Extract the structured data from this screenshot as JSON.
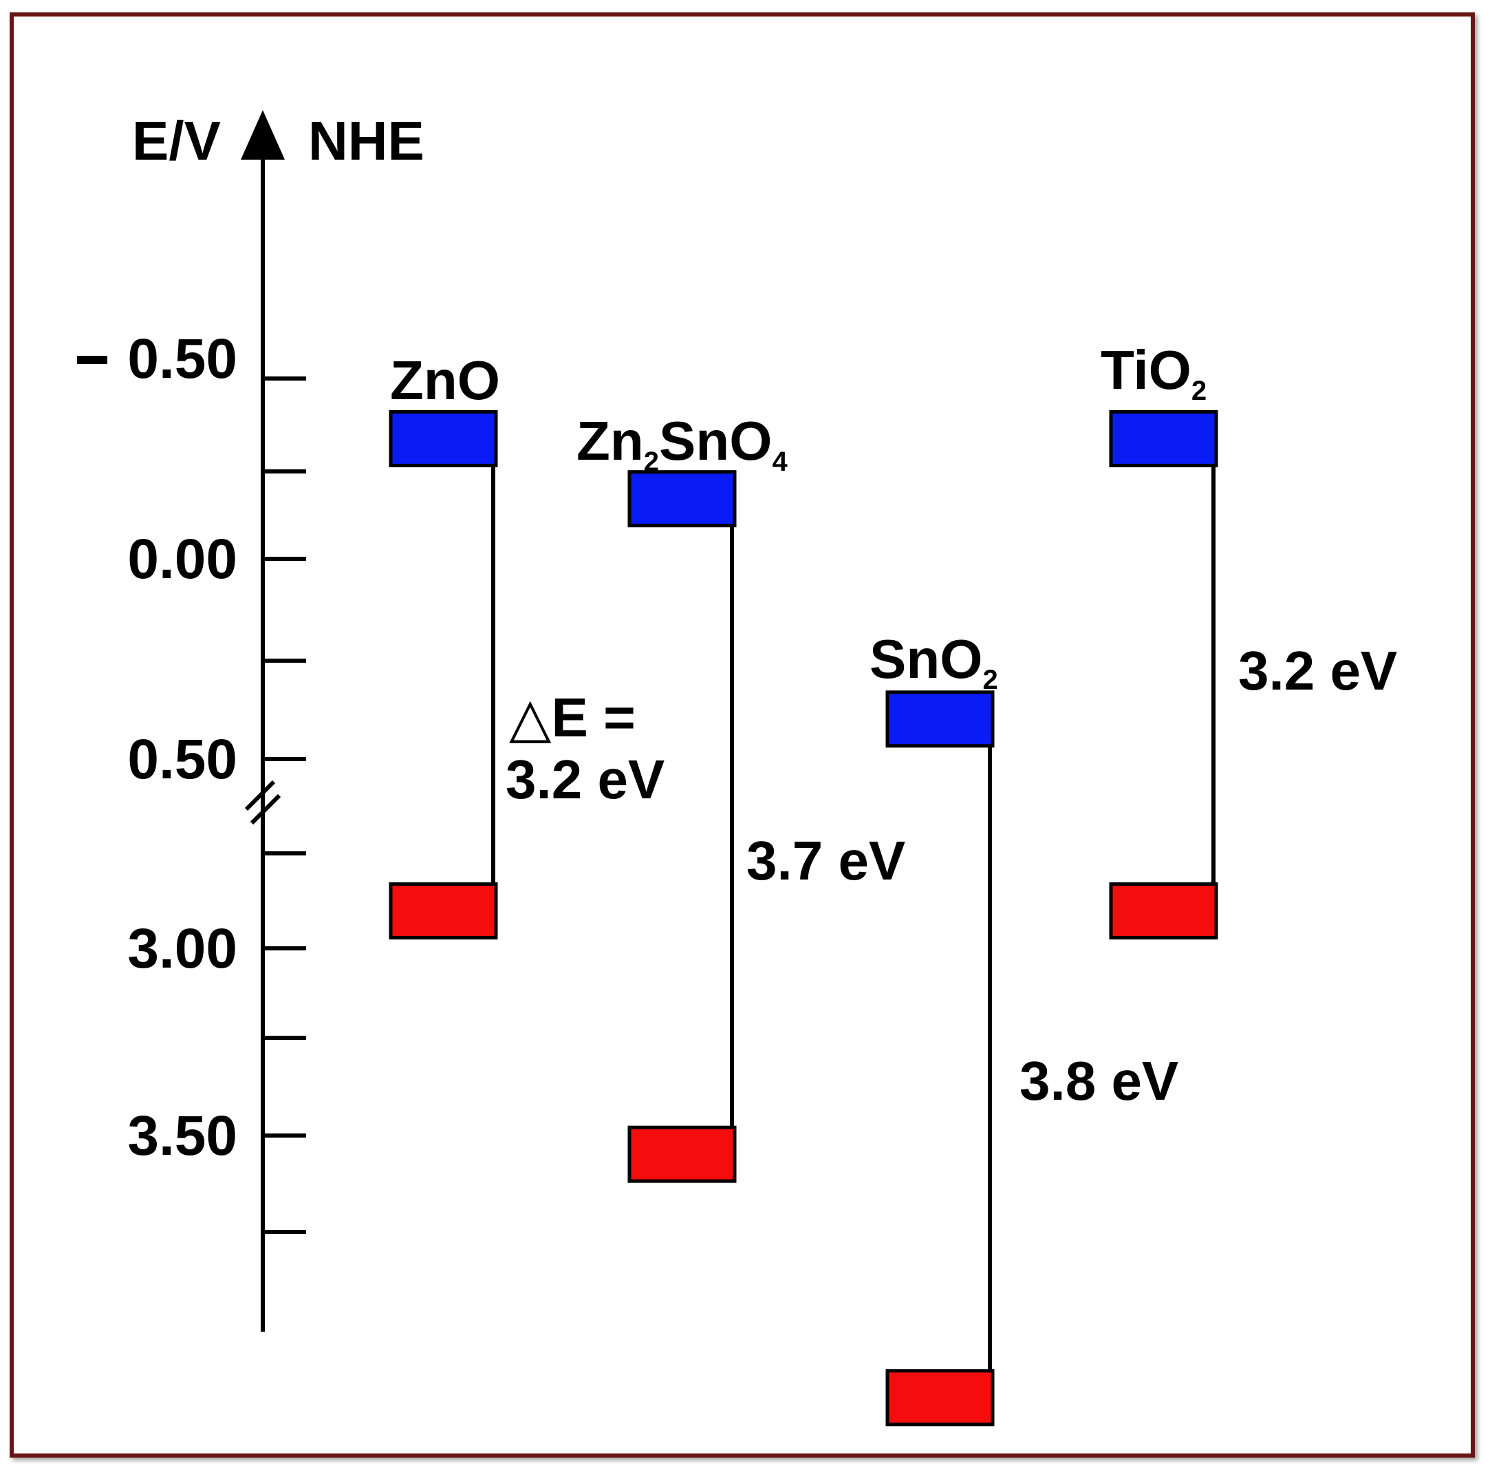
{
  "axis": {
    "label_left": "E/V",
    "label_right": "NHE",
    "ticks": [
      {
        "value": -0.5,
        "label": "0.50",
        "sign": true
      },
      {
        "value": 0.0,
        "label": "0.00"
      },
      {
        "value": 0.5,
        "label": "0.50"
      },
      {
        "value": 3.0,
        "label": "3.00"
      },
      {
        "value": 3.5,
        "label": "3.50"
      }
    ],
    "axis_break": "between 0.50 and 3.00"
  },
  "colors": {
    "conduction_band": "#0a1cf5",
    "valence_band": "#f50d0d",
    "frame": "#6b1414"
  },
  "chart_data": {
    "type": "band-diagram",
    "unit": "E/V vs NHE",
    "materials": [
      {
        "name": "ZnO",
        "name_base": "ZnO",
        "name_sub": "",
        "name_rest": "",
        "name_sub2": "",
        "cb": -0.3,
        "vb": 2.9,
        "gap_label_1": "△E =",
        "gap_label_2": "3.2 eV"
      },
      {
        "name": "Zn2SnO4",
        "name_base": "Zn",
        "name_sub": "2",
        "name_rest": "SnO",
        "name_sub2": "4",
        "cb": -0.15,
        "vb": 3.55,
        "gap_label_1": "",
        "gap_label_2": "3.7 eV"
      },
      {
        "name": "SnO2",
        "name_base": "SnO",
        "name_sub": "2",
        "name_rest": "",
        "name_sub2": "",
        "cb": 0.4,
        "vb": 4.2,
        "gap_label_1": "",
        "gap_label_2": "3.8 eV"
      },
      {
        "name": "TiO2",
        "name_base": "TiO",
        "name_sub": "2",
        "name_rest": "",
        "name_sub2": "",
        "cb": -0.3,
        "vb": 2.9,
        "gap_label_1": "",
        "gap_label_2": "3.2 eV"
      }
    ]
  }
}
